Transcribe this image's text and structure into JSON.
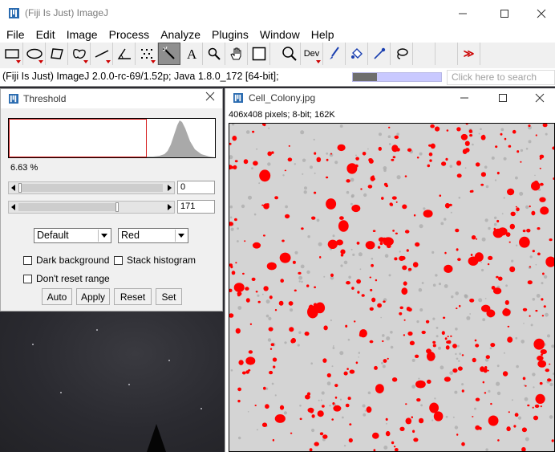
{
  "main_window": {
    "title": "(Fiji Is Just) ImageJ",
    "menus": [
      "File",
      "Edit",
      "Image",
      "Process",
      "Analyze",
      "Plugins",
      "Window",
      "Help"
    ],
    "tools": [
      {
        "name": "rectangle-tool-icon",
        "dropdown": true
      },
      {
        "name": "oval-tool-icon",
        "dropdown": true
      },
      {
        "name": "polygon-tool-icon",
        "dropdown": false
      },
      {
        "name": "freehand-tool-icon",
        "dropdown": true
      },
      {
        "name": "line-tool-icon",
        "dropdown": true
      },
      {
        "name": "angle-tool-icon",
        "dropdown": false
      },
      {
        "name": "point-tool-icon",
        "dropdown": true
      },
      {
        "name": "wand-tool-icon",
        "dropdown": false,
        "selected": true
      },
      {
        "name": "text-tool-icon",
        "dropdown": false
      },
      {
        "name": "magnifier-tool-icon",
        "dropdown": false
      },
      {
        "name": "hand-tool-icon",
        "dropdown": false
      },
      {
        "name": "color-picker-tool-icon",
        "dropdown": false
      },
      {
        "name": "zoom-tool-icon",
        "dropdown": false
      },
      {
        "name": "dev-tool-icon",
        "label": "Dev",
        "dropdown": true
      },
      {
        "name": "brush-tool-icon",
        "dropdown": false
      },
      {
        "name": "flood-fill-tool-icon",
        "dropdown": false
      },
      {
        "name": "pipette-tool-icon",
        "dropdown": false
      },
      {
        "name": "lasso-tool-icon",
        "dropdown": false
      },
      {
        "name": "empty-slot",
        "dropdown": false
      },
      {
        "name": "empty-slot",
        "dropdown": false
      },
      {
        "name": "more-tools-icon",
        "label": "≫",
        "dropdown": false
      }
    ],
    "status_text": "(Fiji Is Just) ImageJ 2.0.0-rc-69/1.52p; Java 1.8.0_172 [64-bit];",
    "memory_progress_fraction": 0.27,
    "search_placeholder": "Click here to search"
  },
  "threshold_window": {
    "title": "Threshold",
    "percentage": "6.63 %",
    "min_value": "0",
    "max_value": "171",
    "min_fraction": 0.0,
    "max_fraction": 0.67,
    "method": "Default",
    "display": "Red",
    "dark_background_label": "Dark background",
    "stack_histogram_label": "Stack histogram",
    "dont_reset_range_label": "Don't reset range",
    "buttons": {
      "auto": "Auto",
      "apply": "Apply",
      "reset": "Reset",
      "set": "Set"
    }
  },
  "image_window": {
    "title": "Cell_Colony.jpg",
    "info": "406x408 pixels; 8-bit; 162K"
  },
  "colors": {
    "threshold_overlay": "#ff0000",
    "selection_outline": "#d62020"
  }
}
